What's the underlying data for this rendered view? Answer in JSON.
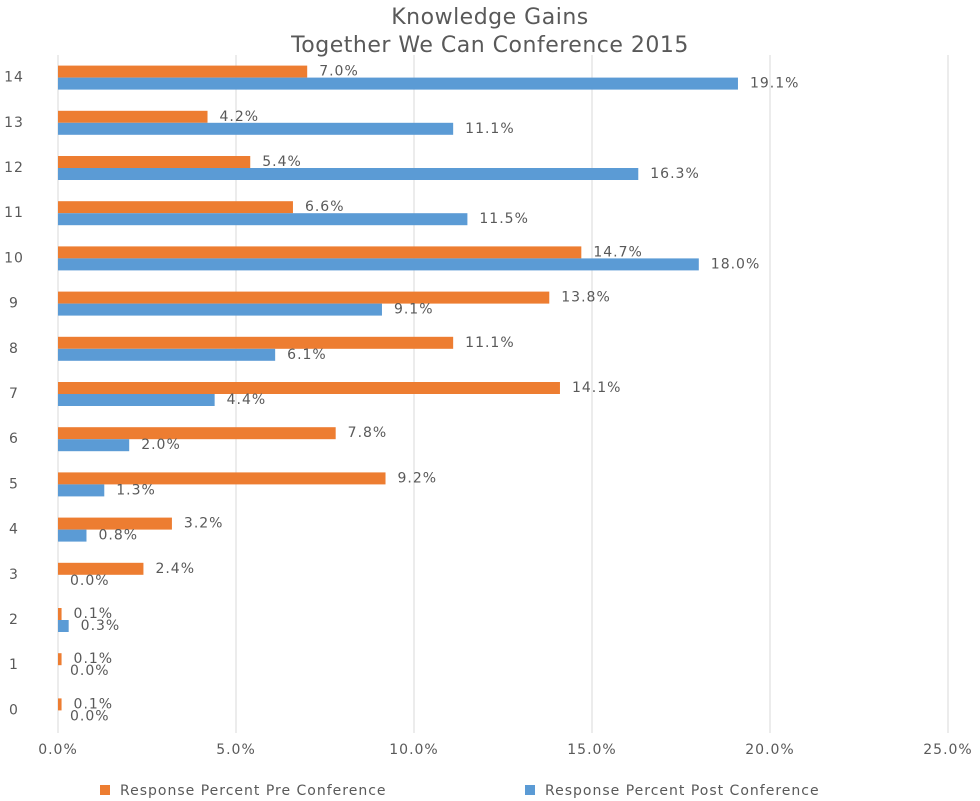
{
  "chart_data": {
    "type": "hbar",
    "title": [
      "Knowledge Gains",
      "Together We Can Conference 2015"
    ],
    "categories": [
      "0",
      "1",
      "2",
      "3",
      "4",
      "5",
      "6",
      "7",
      "8",
      "9",
      "10",
      "11",
      "12",
      "13",
      "14"
    ],
    "series": [
      {
        "name": "Response Percent Pre Conference",
        "color": "#ed7d31",
        "values": [
          0.1,
          0.1,
          0.1,
          2.4,
          3.2,
          9.2,
          7.8,
          14.1,
          11.1,
          13.8,
          14.7,
          6.6,
          5.4,
          4.2,
          7.0
        ],
        "value_labels": [
          "0.1%",
          "0.1%",
          "0.1%",
          "2.4%",
          "3.2%",
          "9.2%",
          "7.8%",
          "14.1%",
          "11.1%",
          "13.8%",
          "14.7%",
          "6.6%",
          "5.4%",
          "4.2%",
          "7.0%"
        ]
      },
      {
        "name": "Response Percent Post Conference",
        "color": "#5b9bd5",
        "values": [
          0.0,
          0.0,
          0.3,
          0.0,
          0.8,
          1.3,
          2.0,
          4.4,
          6.1,
          9.1,
          18.0,
          11.5,
          16.3,
          11.1,
          19.1
        ],
        "value_labels": [
          "0.0%",
          "0.0%",
          "0.3%",
          "0.0%",
          "0.8%",
          "1.3%",
          "2.0%",
          "4.4%",
          "6.1%",
          "9.1%",
          "18.0%",
          "11.5%",
          "16.3%",
          "11.1%",
          "19.1%"
        ]
      }
    ],
    "xlim": [
      0,
      25
    ],
    "xticks": [
      {
        "value": 0,
        "label": "0.0%"
      },
      {
        "value": 5,
        "label": "5.0%"
      },
      {
        "value": 10,
        "label": "10.0%"
      },
      {
        "value": 15,
        "label": "15.0%"
      },
      {
        "value": 20,
        "label": "20.0%"
      },
      {
        "value": 25,
        "label": "25.0%"
      }
    ],
    "grid": true,
    "legend": "bottom"
  }
}
